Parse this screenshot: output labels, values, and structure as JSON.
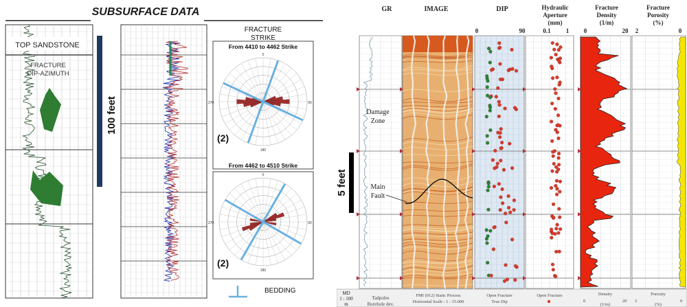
{
  "left_panel": {
    "title": "SUBSURFACE DATA",
    "top_sandstone": "TOP SANDSTONE",
    "fracture_dip_azimuth": [
      "FRACTURE",
      "DIP-AZIMUTH"
    ],
    "scale_label": "100 feet",
    "rose_panel": {
      "header": [
        "FRACTURE",
        "STRIKE"
      ],
      "rose1_title": "From 4410 to 4462 Strike",
      "rose1_count": "(2)",
      "rose2_title": "From 4462 to 4510 Strike",
      "rose2_count": "(2)",
      "compass_labels": {
        "n": "0",
        "e": "90",
        "s": "180",
        "w": "270"
      }
    },
    "bedding_label": "BEDDING",
    "colors": {
      "title": "#1a1a1a",
      "scale_bar": "#1f3a5f",
      "rose_petals": "#a03030",
      "strike_lines": "#6ab0e0",
      "tadpoles": "#2e7d32",
      "log_blue": "#2a3aa8",
      "log_red": "#b02020"
    }
  },
  "right_panel": {
    "headers": {
      "gr": "GR",
      "image": "IMAGE",
      "dip": "DIP",
      "aperture": [
        "Hydraulic",
        "Aperture",
        "(mm)"
      ],
      "density": [
        "Fracture",
        "Density",
        "(1/m)"
      ],
      "porosity": [
        "Fracture",
        "Porosity",
        "(%)"
      ]
    },
    "scales": {
      "dip": [
        "0",
        "90"
      ],
      "aperture": [
        "0.1",
        "1"
      ],
      "density": [
        "0",
        "20"
      ],
      "porosity": [
        "2",
        "0"
      ]
    },
    "annotations": {
      "damage_zone": [
        "Damage",
        "Zone"
      ],
      "main_fault": [
        "Main",
        "Fault"
      ],
      "scale": "5 feet"
    },
    "footer": {
      "md": [
        "MD",
        "1 : 100",
        "m"
      ],
      "gr": [
        "Tadpoles",
        "Borehole dev."
      ],
      "image": [
        "FMI (012) Static Process",
        "Horizontal Scale : 1 : 15.000"
      ],
      "dip": [
        "Open Fracture",
        "True Dip"
      ],
      "aperture": "Open Fracture",
      "density": [
        "Density",
        "0",
        "(1/m)",
        "20"
      ],
      "porosity": [
        "Porosity",
        "2",
        "(%)",
        "0"
      ]
    },
    "colors": {
      "density_fill": "#e8260f",
      "porosity_fill": "#f3e600",
      "dip_dot": "#d93b2b",
      "dip_dot_green": "#1f8a3a",
      "track_bg": "#dfe9f3",
      "image_base": "#e8b070"
    }
  }
}
